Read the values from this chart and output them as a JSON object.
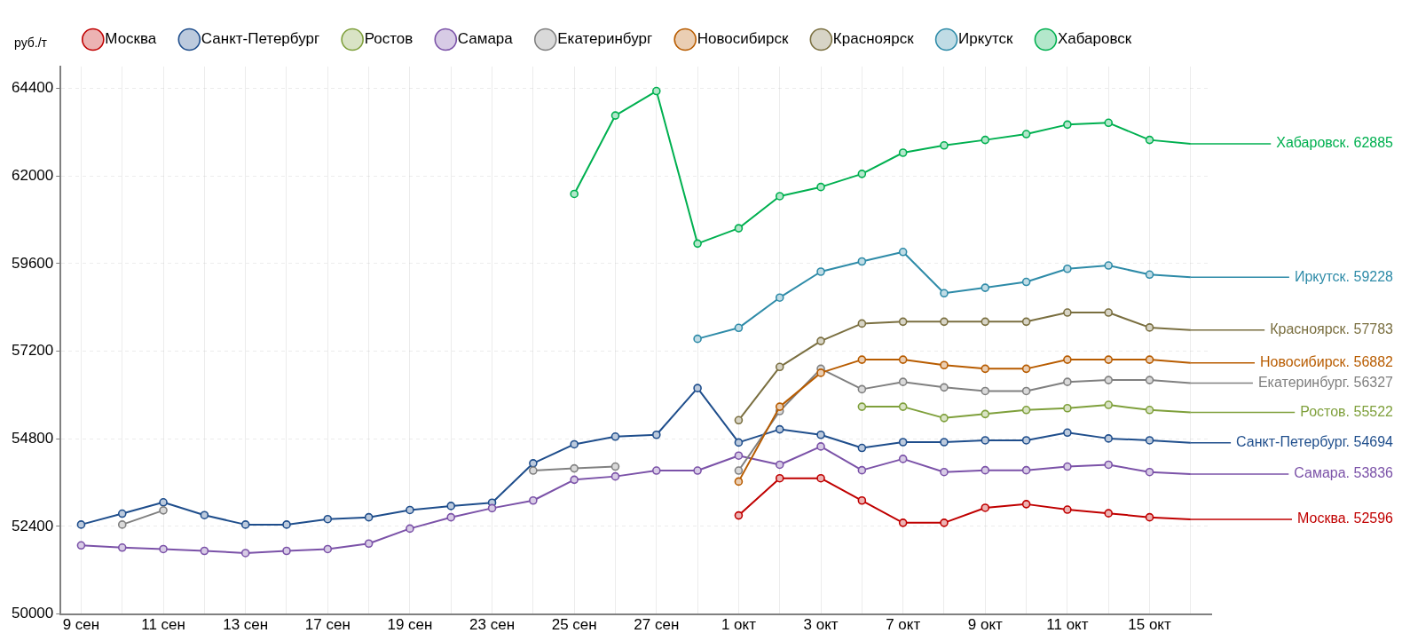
{
  "chart_data": {
    "type": "line",
    "ylabel": "руб./т",
    "marker": "circle",
    "line_style": "solid",
    "grid": true,
    "legend": "top",
    "categories": [
      "9 сен",
      null,
      "11 сен",
      null,
      "13 сен",
      null,
      "17 сен",
      null,
      "19 сен",
      null,
      "23 сен",
      null,
      "25 сен",
      null,
      "27 сен",
      null,
      "1 окт",
      null,
      "3 окт",
      null,
      "7 окт",
      null,
      "9 окт",
      null,
      "11 окт",
      null,
      "15 окт",
      null
    ],
    "ylim": [
      50000,
      65000
    ],
    "yticks": [
      50000,
      52400,
      54800,
      57200,
      59600,
      62000,
      64400
    ],
    "series": [
      {
        "name": "Москва",
        "color": "#c00000",
        "values": [
          null,
          null,
          null,
          null,
          null,
          null,
          null,
          null,
          null,
          null,
          null,
          null,
          null,
          null,
          null,
          null,
          52700,
          53720,
          53720,
          53110,
          52500,
          52500,
          52910,
          53010,
          52860,
          52760,
          52650,
          52596
        ],
        "value_labels": [
          null,
          null,
          null,
          null,
          null,
          null,
          null,
          null,
          null,
          null,
          null,
          null,
          null,
          null,
          null,
          null,
          null,
          null,
          null,
          null,
          null,
          null,
          null,
          null,
          null,
          null,
          null,
          "Москва. 52596"
        ]
      },
      {
        "name": "Санкт-Петербург",
        "color": "#1f4e8c",
        "values": [
          52450,
          52750,
          53060,
          52710,
          52450,
          52450,
          52600,
          52650,
          52850,
          52960,
          53050,
          54130,
          54650,
          54860,
          54910,
          56190,
          54700,
          55060,
          54910,
          54550,
          54710,
          54710,
          54760,
          54760,
          54970,
          54810,
          54760,
          54694
        ],
        "value_labels": [
          null,
          null,
          null,
          null,
          null,
          null,
          null,
          null,
          null,
          null,
          null,
          null,
          null,
          null,
          null,
          null,
          null,
          null,
          null,
          null,
          null,
          null,
          null,
          null,
          null,
          null,
          null,
          "Санкт-Петербург. 54694"
        ]
      },
      {
        "name": "Ростов",
        "color": "#7fa03c",
        "values": [
          null,
          null,
          null,
          null,
          null,
          null,
          null,
          null,
          null,
          null,
          null,
          null,
          null,
          null,
          null,
          null,
          null,
          null,
          null,
          55680,
          55680,
          55370,
          55480,
          55590,
          55640,
          55730,
          55590,
          55522
        ],
        "value_labels": [
          null,
          null,
          null,
          null,
          null,
          null,
          null,
          null,
          null,
          null,
          null,
          null,
          null,
          null,
          null,
          null,
          null,
          null,
          null,
          null,
          null,
          null,
          null,
          null,
          null,
          null,
          null,
          "Ростов. 55522"
        ]
      },
      {
        "name": "Самара",
        "color": "#7b52a8",
        "values": [
          51880,
          51820,
          51780,
          51730,
          51670,
          51730,
          51780,
          51930,
          52340,
          52650,
          52900,
          53110,
          53680,
          53770,
          53930,
          53930,
          54340,
          54090,
          54590,
          53940,
          54250,
          53890,
          53940,
          53940,
          54040,
          54090,
          53890,
          53836
        ],
        "value_labels": [
          null,
          null,
          null,
          null,
          null,
          null,
          null,
          null,
          null,
          null,
          null,
          null,
          null,
          null,
          null,
          null,
          null,
          null,
          null,
          null,
          null,
          null,
          null,
          null,
          null,
          null,
          null,
          "Самара. 53836"
        ]
      },
      {
        "name": "Екатеринбург",
        "color": "#808080",
        "values": [
          null,
          52450,
          52840,
          null,
          null,
          null,
          null,
          null,
          null,
          null,
          null,
          53930,
          53990,
          54040,
          null,
          null,
          53930,
          55560,
          56720,
          56160,
          56360,
          56210,
          56110,
          56110,
          56360,
          56410,
          56410,
          56327
        ],
        "value_labels": [
          null,
          null,
          null,
          null,
          null,
          null,
          null,
          null,
          null,
          null,
          null,
          null,
          null,
          null,
          null,
          null,
          null,
          null,
          null,
          null,
          null,
          null,
          null,
          null,
          null,
          null,
          null,
          "Екатеринбург. 56327"
        ]
      },
      {
        "name": "Новосибирск",
        "color": "#b85c00",
        "values": [
          null,
          null,
          null,
          null,
          null,
          null,
          null,
          null,
          null,
          null,
          null,
          null,
          null,
          null,
          null,
          null,
          53630,
          55680,
          56610,
          56970,
          56970,
          56820,
          56720,
          56720,
          56970,
          56970,
          56970,
          56882
        ],
        "value_labels": [
          null,
          null,
          null,
          null,
          null,
          null,
          null,
          null,
          null,
          null,
          null,
          null,
          null,
          null,
          null,
          null,
          null,
          null,
          null,
          null,
          null,
          null,
          null,
          null,
          null,
          null,
          null,
          "Новосибирск. 56882"
        ]
      },
      {
        "name": "Красноярск",
        "color": "#7a6f40",
        "values": [
          null,
          null,
          null,
          null,
          null,
          null,
          null,
          null,
          null,
          null,
          null,
          null,
          null,
          null,
          null,
          null,
          55310,
          56770,
          57480,
          57960,
          58010,
          58010,
          58010,
          58010,
          58260,
          58260,
          57850,
          57783
        ],
        "value_labels": [
          null,
          null,
          null,
          null,
          null,
          null,
          null,
          null,
          null,
          null,
          null,
          null,
          null,
          null,
          null,
          null,
          null,
          null,
          null,
          null,
          null,
          null,
          null,
          null,
          null,
          null,
          null,
          "Красноярск. 57783"
        ]
      },
      {
        "name": "Иркутск",
        "color": "#2e8ba8",
        "values": [
          null,
          null,
          null,
          null,
          null,
          null,
          null,
          null,
          null,
          null,
          null,
          null,
          null,
          null,
          null,
          57540,
          57840,
          58670,
          59380,
          59660,
          59920,
          58790,
          58940,
          59100,
          59460,
          59550,
          59300,
          59228
        ],
        "value_labels": [
          null,
          null,
          null,
          null,
          null,
          null,
          null,
          null,
          null,
          null,
          null,
          null,
          null,
          null,
          null,
          null,
          null,
          null,
          null,
          null,
          null,
          null,
          null,
          null,
          null,
          null,
          null,
          "Иркутск. 59228"
        ]
      },
      {
        "name": "Хабаровск",
        "color": "#00b050",
        "values": [
          null,
          null,
          null,
          null,
          null,
          null,
          null,
          null,
          null,
          null,
          null,
          null,
          61510,
          63660,
          64330,
          60150,
          60570,
          61450,
          61700,
          62060,
          62640,
          62840,
          62990,
          63150,
          63410,
          63460,
          62990,
          62885
        ],
        "value_labels": [
          null,
          null,
          null,
          null,
          null,
          null,
          null,
          null,
          null,
          null,
          null,
          null,
          null,
          null,
          null,
          null,
          null,
          null,
          null,
          null,
          null,
          null,
          null,
          null,
          null,
          null,
          null,
          "Хабаровск. 62885"
        ]
      }
    ]
  }
}
